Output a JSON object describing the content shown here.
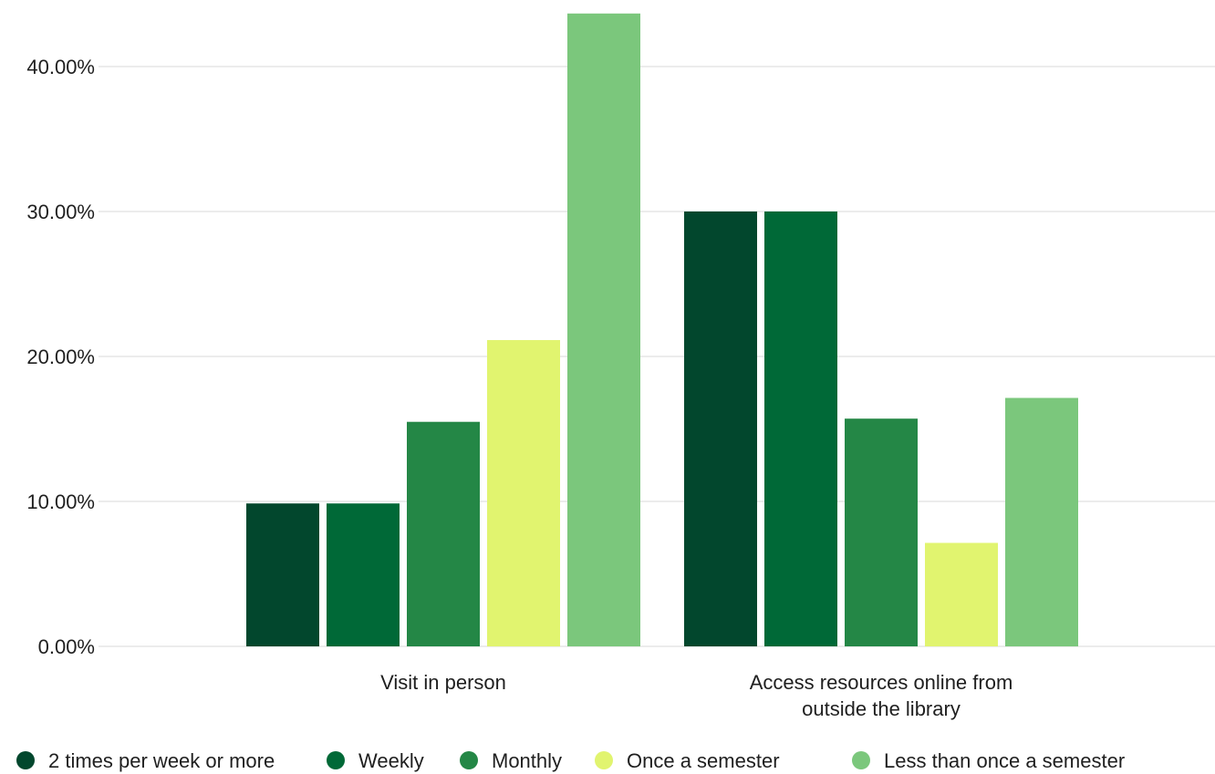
{
  "chart_data": {
    "type": "bar",
    "title": "",
    "xlabel": "",
    "ylabel": "",
    "categories": [
      [
        "Visit in person"
      ],
      [
        "Access resources online from",
        "outside the library"
      ]
    ],
    "series": [
      {
        "name": "2 times per week or more",
        "color": "#02472d",
        "values": [
          9.86,
          30.0
        ]
      },
      {
        "name": "Weekly",
        "color": "#006937",
        "values": [
          9.86,
          30.0
        ]
      },
      {
        "name": "Monthly",
        "color": "#248746",
        "values": [
          15.49,
          15.71
        ]
      },
      {
        "name": "Once a semester",
        "color": "#e1f46f",
        "values": [
          21.13,
          7.14
        ]
      },
      {
        "name": "Less than once a semester",
        "color": "#7bc77c",
        "values": [
          43.66,
          17.14
        ]
      }
    ],
    "ylim": [
      0,
      43.66
    ],
    "yticks": [
      0,
      10,
      20,
      30,
      40
    ],
    "ytick_labels": [
      "0.00%",
      "10.00%",
      "20.00%",
      "30.00%",
      "40.00%"
    ],
    "grid": true,
    "legend_position": "bottom"
  }
}
